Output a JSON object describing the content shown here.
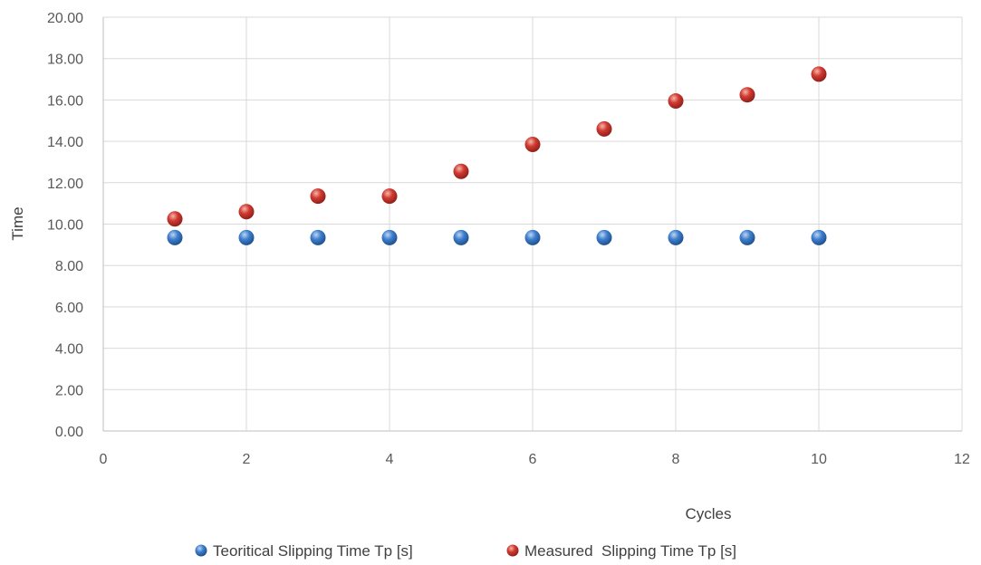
{
  "chart_data": {
    "type": "scatter",
    "title": "",
    "xlabel": "Cycles",
    "ylabel": "Time",
    "xlim": [
      0,
      12
    ],
    "ylim": [
      0,
      20
    ],
    "x_ticks": [
      "0",
      "2",
      "4",
      "6",
      "8",
      "10",
      "12"
    ],
    "y_ticks": [
      "0.00",
      "2.00",
      "4.00",
      "6.00",
      "8.00",
      "10.00",
      "12.00",
      "14.00",
      "16.00",
      "18.00",
      "20.00"
    ],
    "grid": true,
    "legend_position": "bottom",
    "series": [
      {
        "name": "Teoritical Slipping Time Tp [s]",
        "color": "#2e6bb8",
        "x": [
          1,
          2,
          3,
          4,
          5,
          6,
          7,
          8,
          9,
          10
        ],
        "y": [
          9.35,
          9.35,
          9.35,
          9.35,
          9.35,
          9.35,
          9.35,
          9.35,
          9.35,
          9.35
        ]
      },
      {
        "name": "Measured  Slipping Time Tp [s]",
        "color": "#c0312b",
        "x": [
          1,
          2,
          3,
          4,
          5,
          6,
          7,
          8,
          9,
          10
        ],
        "y": [
          10.25,
          10.6,
          11.35,
          11.35,
          12.55,
          13.85,
          14.6,
          15.95,
          16.25,
          17.25
        ]
      }
    ]
  }
}
